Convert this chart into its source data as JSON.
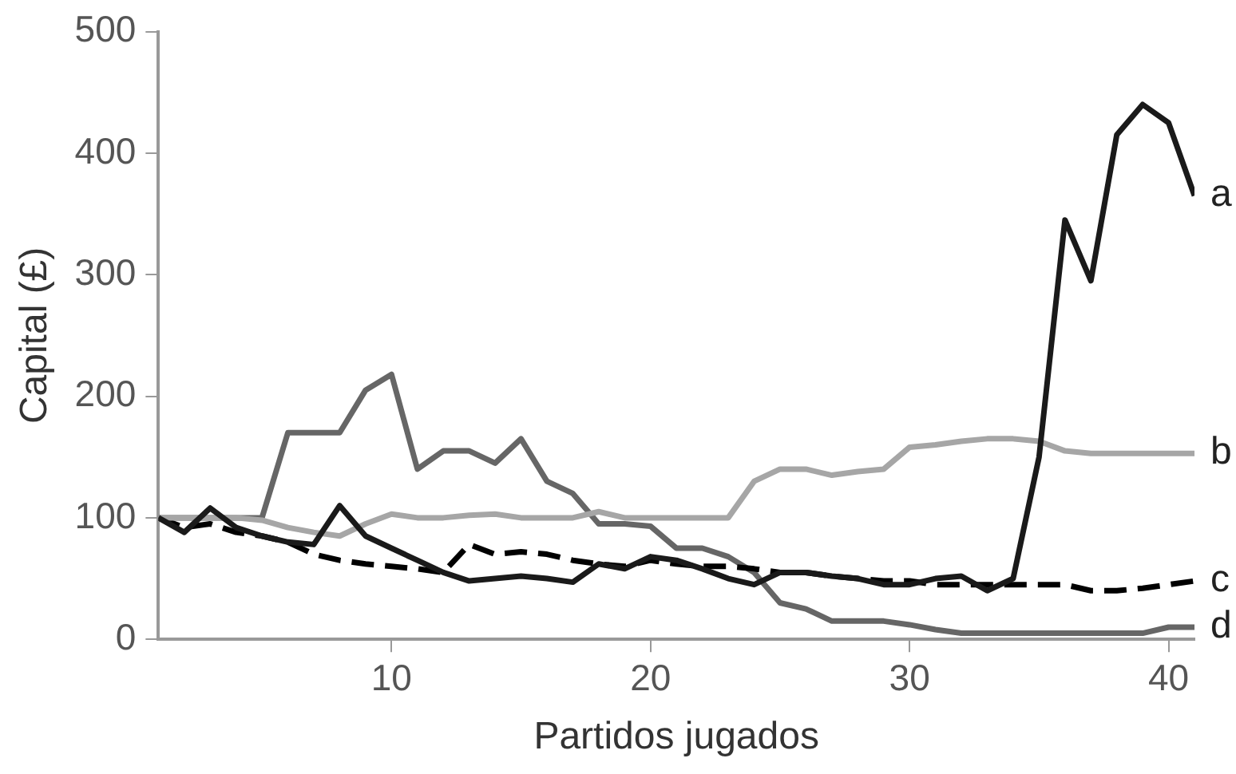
{
  "chart_data": {
    "type": "line",
    "xlabel": "Partidos jugados",
    "ylabel": "Capital (£)",
    "x": [
      1,
      2,
      3,
      4,
      5,
      6,
      7,
      8,
      9,
      10,
      11,
      12,
      13,
      14,
      15,
      16,
      17,
      18,
      19,
      20,
      21,
      22,
      23,
      24,
      25,
      26,
      27,
      28,
      29,
      30,
      31,
      32,
      33,
      34,
      35,
      36,
      37,
      38,
      39,
      40,
      41
    ],
    "xlim": [
      1,
      41
    ],
    "xticks": [
      10,
      20,
      30,
      40
    ],
    "ylim": [
      0,
      500
    ],
    "yticks": [
      0,
      100,
      200,
      300,
      400,
      500
    ],
    "grid": false,
    "legend": false,
    "marker": "none",
    "series": [
      {
        "name": "a",
        "color": "#1a1a1a",
        "line_style": "solid",
        "values": [
          100,
          88,
          108,
          92,
          85,
          80,
          78,
          110,
          85,
          75,
          65,
          55,
          48,
          50,
          52,
          50,
          47,
          62,
          58,
          68,
          65,
          58,
          50,
          45,
          55,
          55,
          52,
          50,
          45,
          45,
          50,
          52,
          40,
          50,
          150,
          345,
          295,
          415,
          440,
          425,
          365
        ]
      },
      {
        "name": "b",
        "color": "#a6a6a6",
        "line_style": "solid",
        "values": [
          100,
          100,
          100,
          100,
          98,
          92,
          88,
          85,
          95,
          103,
          100,
          100,
          102,
          103,
          100,
          100,
          100,
          105,
          100,
          100,
          100,
          100,
          100,
          130,
          140,
          140,
          135,
          138,
          140,
          158,
          160,
          163,
          165,
          165,
          163,
          155,
          153,
          153,
          153,
          153,
          153
        ]
      },
      {
        "name": "c",
        "color": "#000000",
        "line_style": "dashed",
        "values": [
          100,
          92,
          95,
          88,
          85,
          80,
          70,
          65,
          62,
          60,
          58,
          55,
          78,
          70,
          72,
          70,
          65,
          62,
          60,
          65,
          62,
          60,
          60,
          58,
          55,
          55,
          52,
          50,
          48,
          48,
          45,
          45,
          45,
          45,
          45,
          45,
          40,
          40,
          42,
          45,
          48
        ]
      },
      {
        "name": "d",
        "color": "#666666",
        "line_style": "solid",
        "values": [
          100,
          100,
          100,
          100,
          100,
          170,
          170,
          170,
          205,
          218,
          140,
          155,
          155,
          145,
          165,
          130,
          120,
          95,
          95,
          93,
          75,
          75,
          68,
          55,
          30,
          25,
          15,
          15,
          15,
          12,
          8,
          5,
          5,
          5,
          5,
          5,
          5,
          5,
          5,
          10,
          10
        ]
      }
    ]
  }
}
